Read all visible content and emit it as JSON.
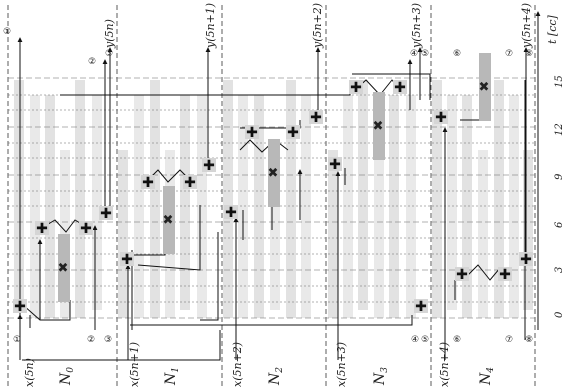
{
  "inputs": [
    "x(5n)",
    "x(5n+1)",
    "x(5n+2)",
    "x(5n+3)",
    "x(5n+4)"
  ],
  "outputs": [
    "y(5n)",
    "y(5n+1)",
    "y(5n+2)",
    "y(5n+3)",
    "y(5n+4)"
  ],
  "blocks": [
    "N",
    "N",
    "N",
    "N",
    "N"
  ],
  "block_subscripts": [
    "0",
    "1",
    "2",
    "3",
    "4"
  ],
  "cycle_axis_label": "t [cc]",
  "cycle_ticks": [
    "0",
    "3",
    "6",
    "9",
    "12",
    "15"
  ],
  "markers": [
    "①",
    "②",
    "③",
    "④",
    "⑤",
    "⑥",
    "⑦",
    "⑧"
  ],
  "ops": {
    "add": "add-operator",
    "mul": "multiply-operator"
  }
}
